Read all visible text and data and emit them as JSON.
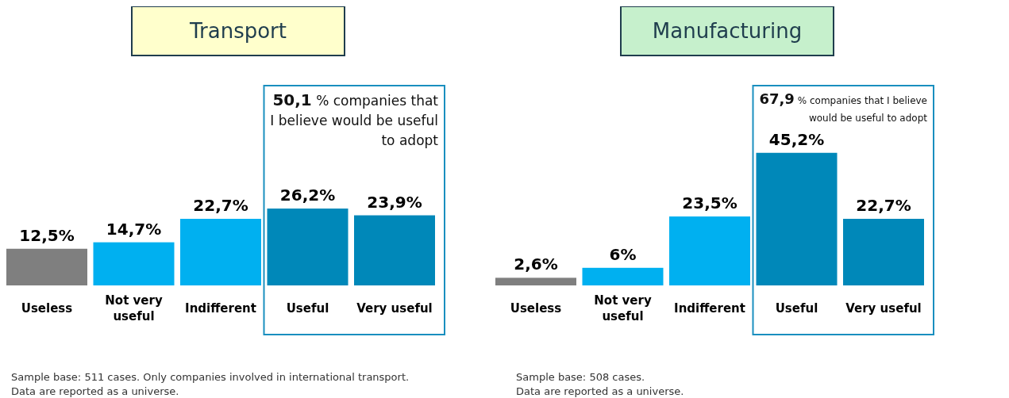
{
  "chart_data": [
    {
      "type": "bar",
      "title": "Transport",
      "categories": [
        "Useless",
        "Not very useful",
        "Indifferent",
        "Useful",
        "Very useful"
      ],
      "values": [
        12.5,
        14.7,
        22.7,
        26.2,
        23.9
      ],
      "colors": [
        "#7f7f7f",
        "#00b0f0",
        "#00b0f0",
        "#0088b9",
        "#0088b9"
      ],
      "value_labels": [
        "12,5%",
        "14,7%",
        "22,7%",
        "26,2%",
        "23,9%"
      ],
      "annotations": [
        "50,1 % companies that I believe would be useful to adopt",
        "Sample base: 511 cases. Only companies involved in international transport.",
        "Data are reported as a universe."
      ]
    },
    {
      "type": "bar",
      "title": "Manufacturing",
      "categories": [
        "Useless",
        "Not very useful",
        "Indifferent",
        "Useful",
        "Very useful"
      ],
      "values": [
        2.6,
        6,
        23.5,
        45.2,
        22.7
      ],
      "colors": [
        "#7f7f7f",
        "#00b0f0",
        "#00b0f0",
        "#0088b9",
        "#0088b9"
      ],
      "value_labels": [
        "2,6%",
        "6%",
        "23,5%",
        "45,2%",
        "22,7%"
      ],
      "annotations": [
        "67,9 % companies that I believe would be useful to adopt",
        "Sample base: 508 cases.",
        "Data are reported as a universe."
      ]
    }
  ]
}
